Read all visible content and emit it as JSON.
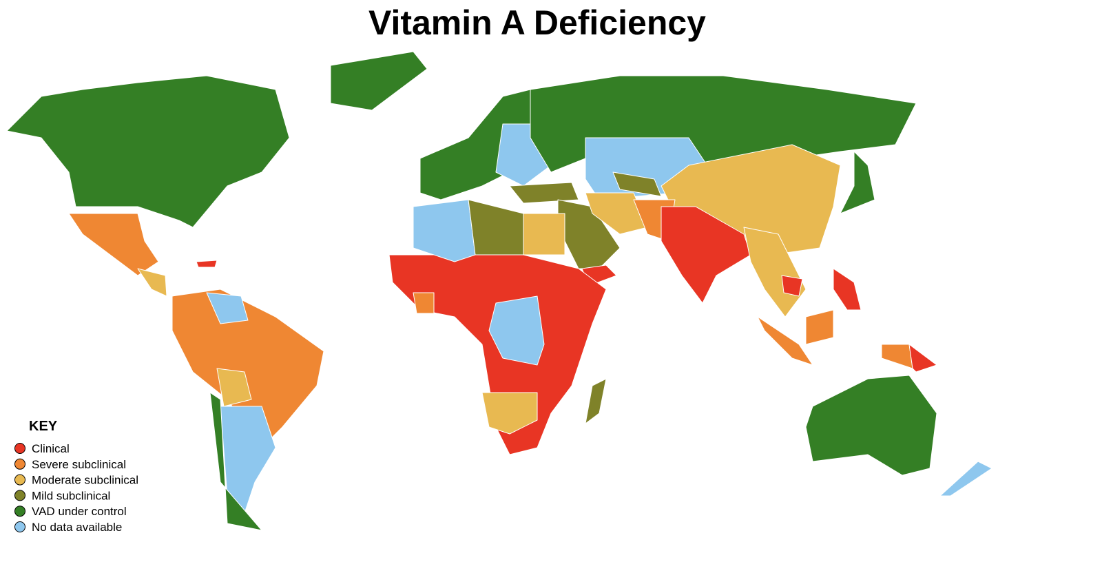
{
  "title": "Vitamin A Deficiency",
  "legend": {
    "title": "KEY",
    "items": [
      {
        "label": "Clinical",
        "color": "#e83524"
      },
      {
        "label": "Severe subclinical",
        "color": "#ef8733"
      },
      {
        "label": "Moderate subclinical",
        "color": "#e8b951"
      },
      {
        "label": "Mild subclinical",
        "color": "#7f8229"
      },
      {
        "label": "VAD under control",
        "color": "#347f25"
      },
      {
        "label": "No data available",
        "color": "#8ec7ee"
      }
    ]
  }
}
